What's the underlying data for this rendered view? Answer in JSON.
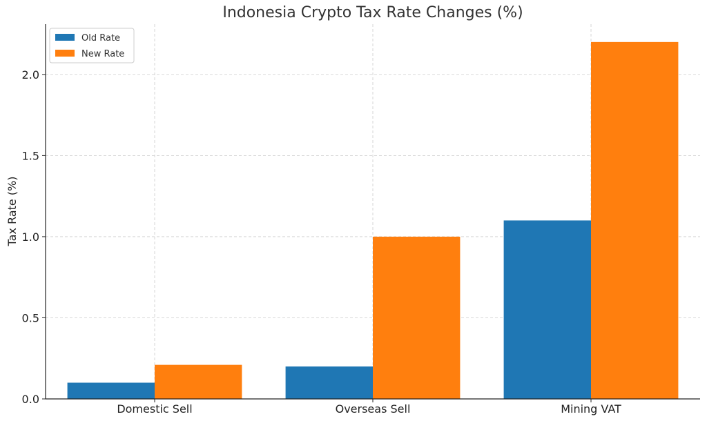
{
  "chart_data": {
    "type": "bar",
    "title": "Indonesia Crypto Tax Rate Changes (%)",
    "xlabel": "",
    "ylabel": "Tax Rate (%)",
    "categories": [
      "Domestic Sell",
      "Overseas Sell",
      "Mining VAT"
    ],
    "series": [
      {
        "name": "Old Rate",
        "values": [
          0.1,
          0.2,
          1.1
        ],
        "color": "#1f77b4"
      },
      {
        "name": "New Rate",
        "values": [
          0.21,
          1.0,
          2.2
        ],
        "color": "#ff7f0e"
      }
    ],
    "ylim": [
      0,
      2.31
    ],
    "yticks": [
      0.0,
      0.5,
      1.0,
      1.5,
      2.0
    ],
    "ytick_labels": [
      "0.0",
      "0.5",
      "1.0",
      "1.5",
      "2.0"
    ],
    "grid": true,
    "legend_position": "top-left"
  }
}
